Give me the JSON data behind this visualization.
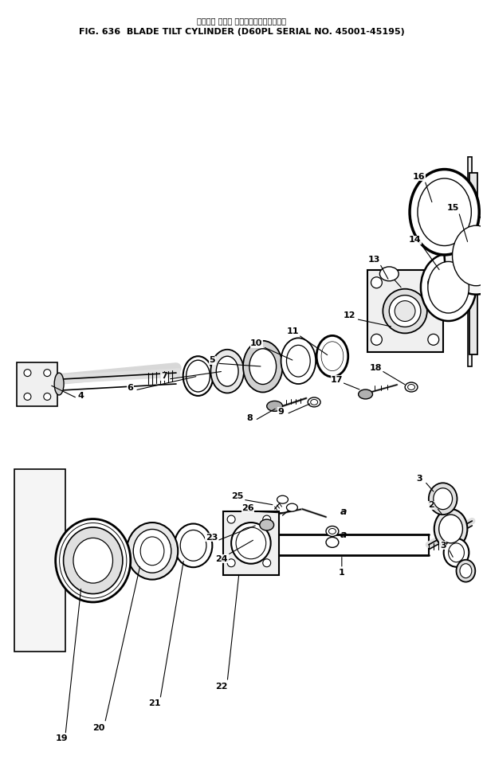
{
  "title_jp": "ブレード チルト シリンダ　　　適用号機",
  "title_en": "FIG. 636  BLADE TILT CYLINDER (D60PL SERIAL NO. 45001-45195)",
  "bg_color": "#ffffff",
  "fg_color": "#000000",
  "figsize": [
    6.06,
    9.73
  ],
  "dpi": 100
}
